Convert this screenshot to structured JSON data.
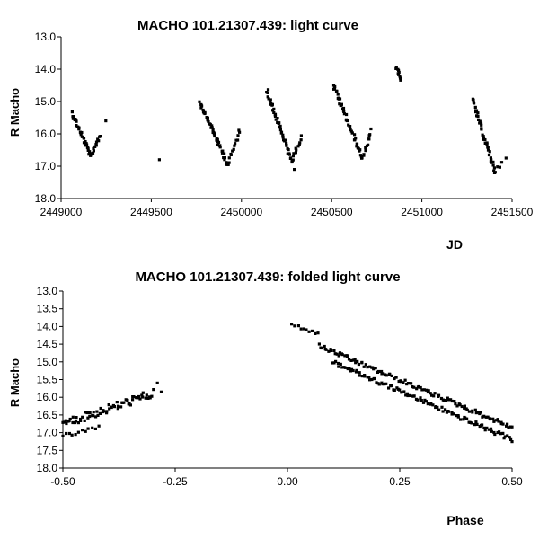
{
  "chart_data": [
    {
      "type": "scatter",
      "title": "MACHO 101.21307.439: light curve",
      "xlabel": "JD",
      "ylabel": "R Macho",
      "xlim": [
        2449000,
        2451500
      ],
      "ylim": [
        18.0,
        13.0
      ],
      "y_inverted": true,
      "xticks": [
        2449000,
        2449500,
        2450000,
        2450500,
        2451000,
        2451500
      ],
      "xtick_labels": [
        "2449000",
        "2449500",
        "2450000",
        "2450500",
        "2451000",
        "2451500"
      ],
      "yticks": [
        13.0,
        14.0,
        15.0,
        16.0,
        17.0,
        18.0
      ],
      "ytick_labels": [
        "13.0",
        "14.0",
        "15.0",
        "16.0",
        "17.0",
        "18.0"
      ],
      "grid": false,
      "marker_color": "#000000",
      "segments": [
        {
          "x0": 2449060,
          "y0": 15.35,
          "x1": 2449165,
          "y1": 16.7,
          "n": 32,
          "jitter": 0.07
        },
        {
          "x0": 2449165,
          "y0": 16.7,
          "x1": 2449215,
          "y1": 16.05,
          "n": 14,
          "jitter": 0.06
        },
        {
          "x0": 2449250,
          "y0": 15.6,
          "x1": 2449250,
          "y1": 15.6,
          "n": 1,
          "jitter": 0
        },
        {
          "x0": 2449540,
          "y0": 16.8,
          "x1": 2449540,
          "y1": 16.8,
          "n": 1,
          "jitter": 0
        },
        {
          "x0": 2449770,
          "y0": 15.0,
          "x1": 2449925,
          "y1": 16.95,
          "n": 45,
          "jitter": 0.07
        },
        {
          "x0": 2449925,
          "y0": 16.95,
          "x1": 2449990,
          "y1": 15.9,
          "n": 14,
          "jitter": 0.06
        },
        {
          "x0": 2450140,
          "y0": 14.65,
          "x1": 2450280,
          "y1": 16.85,
          "n": 45,
          "jitter": 0.07
        },
        {
          "x0": 2450280,
          "y0": 16.85,
          "x1": 2450330,
          "y1": 16.1,
          "n": 12,
          "jitter": 0.06
        },
        {
          "x0": 2450290,
          "y0": 17.1,
          "x1": 2450290,
          "y1": 17.1,
          "n": 1,
          "jitter": 0
        },
        {
          "x0": 2450510,
          "y0": 14.5,
          "x1": 2450670,
          "y1": 16.75,
          "n": 48,
          "jitter": 0.07
        },
        {
          "x0": 2450670,
          "y0": 16.75,
          "x1": 2450720,
          "y1": 15.9,
          "n": 12,
          "jitter": 0.06
        },
        {
          "x0": 2450860,
          "y0": 13.95,
          "x1": 2450880,
          "y1": 14.3,
          "n": 10,
          "jitter": 0.05
        },
        {
          "x0": 2451280,
          "y0": 14.95,
          "x1": 2451405,
          "y1": 17.15,
          "n": 40,
          "jitter": 0.07
        },
        {
          "x0": 2451405,
          "y0": 17.15,
          "x1": 2451440,
          "y1": 16.9,
          "n": 4,
          "jitter": 0.05
        },
        {
          "x0": 2451470,
          "y0": 16.75,
          "x1": 2451470,
          "y1": 16.75,
          "n": 1,
          "jitter": 0
        }
      ]
    },
    {
      "type": "scatter",
      "title": "MACHO 101.21307.439: folded light curve",
      "xlabel": "Phase",
      "ylabel": "R Macho",
      "xlim": [
        -0.5,
        0.5
      ],
      "ylim": [
        18.0,
        13.0
      ],
      "y_inverted": true,
      "xticks": [
        -0.5,
        -0.25,
        0.0,
        0.25,
        0.5
      ],
      "xtick_labels": [
        "-0.50",
        "-0.25",
        "0.00",
        "0.25",
        "0.50"
      ],
      "yticks": [
        13.0,
        13.5,
        14.0,
        14.5,
        15.0,
        15.5,
        16.0,
        16.5,
        17.0,
        17.5,
        18.0
      ],
      "ytick_labels": [
        "13.0",
        "13.5",
        "14.0",
        "14.5",
        "15.0",
        "15.5",
        "16.0",
        "16.5",
        "17.0",
        "17.5",
        "18.0"
      ],
      "grid": false,
      "marker_color": "#000000",
      "segments": [
        {
          "x0": -0.5,
          "y0": 16.75,
          "x1": -0.3,
          "y1": 15.9,
          "n": 70,
          "jitter": 0.12
        },
        {
          "x0": -0.5,
          "y0": 17.1,
          "x1": -0.42,
          "y1": 16.85,
          "n": 12,
          "jitter": 0.06
        },
        {
          "x0": -0.28,
          "y0": 15.85,
          "x1": -0.28,
          "y1": 15.85,
          "n": 1,
          "jitter": 0
        },
        {
          "x0": -0.29,
          "y0": 15.6,
          "x1": -0.29,
          "y1": 15.6,
          "n": 1,
          "jitter": 0
        },
        {
          "x0": 0.01,
          "y0": 13.95,
          "x1": 0.07,
          "y1": 14.2,
          "n": 10,
          "jitter": 0.04
        },
        {
          "x0": 0.07,
          "y0": 14.55,
          "x1": 0.5,
          "y1": 16.85,
          "n": 120,
          "jitter": 0.06
        },
        {
          "x0": 0.1,
          "y0": 15.0,
          "x1": 0.5,
          "y1": 17.2,
          "n": 110,
          "jitter": 0.06
        }
      ]
    }
  ]
}
